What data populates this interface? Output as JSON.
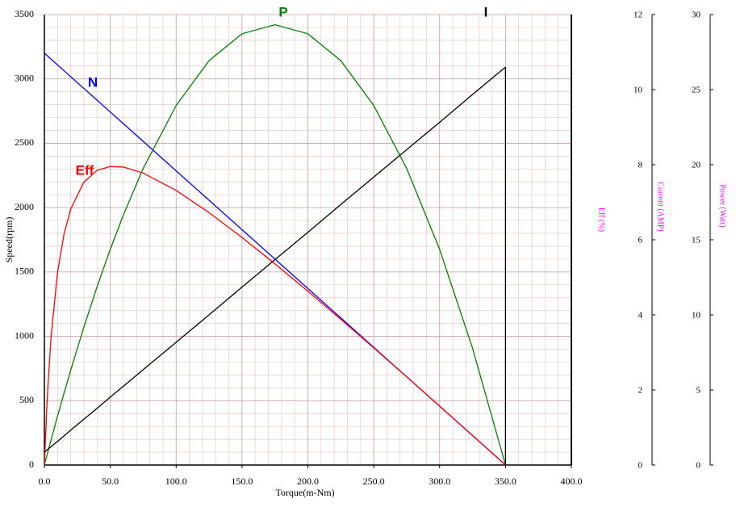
{
  "chart_data": {
    "type": "line",
    "x_label": "Torque(m-Nm)",
    "y_label": "Speed(rpm)",
    "eff_axis_label": "Eff  (%)",
    "y2_label": "Current (AMP)",
    "y3_label": "Power (Watt)",
    "x": [
      0,
      2,
      5,
      10,
      15,
      20,
      30,
      40,
      50,
      60,
      75,
      100,
      125,
      150,
      175,
      200,
      225,
      250,
      275,
      300,
      325,
      350
    ],
    "xlim": [
      0,
      400
    ],
    "xticks": [
      {
        "value": 0,
        "label": "0.0"
      },
      {
        "value": 50,
        "label": "50.0"
      },
      {
        "value": 100,
        "label": "100.0"
      },
      {
        "value": 150,
        "label": "150.0"
      },
      {
        "value": 200,
        "label": "200.0"
      },
      {
        "value": 250,
        "label": "250.0"
      },
      {
        "value": 300,
        "label": "300.0"
      },
      {
        "value": 350,
        "label": "350.0"
      },
      {
        "value": 400,
        "label": "400.0"
      }
    ],
    "ylim": [
      0,
      3500
    ],
    "yticks": [
      0,
      500,
      1000,
      1500,
      2000,
      2500,
      3000,
      3500
    ],
    "y2lim": [
      0,
      12
    ],
    "y2ticks": [
      0,
      2,
      4,
      6,
      8,
      10,
      12
    ],
    "y3lim": [
      0,
      30
    ],
    "y3ticks": [
      0,
      5,
      10,
      15,
      20,
      25,
      30
    ],
    "grid": true,
    "series": [
      {
        "name": "N",
        "color": "#0000ff",
        "axis": "y",
        "values": [
          3200,
          3181.7,
          3154.3,
          3108.6,
          3062.9,
          3017.1,
          2925.7,
          2834.3,
          2742.9,
          2651.4,
          2514.3,
          2285.7,
          2057.1,
          1828.6,
          1600,
          1371.4,
          1142.9,
          914.3,
          685.7,
          457.1,
          228.6,
          0
        ]
      },
      {
        "name": "Eff",
        "color": "#ff0000",
        "axis": "y",
        "values": [
          0,
          487,
          990,
          1499,
          1799,
          1989,
          2198,
          2290,
          2319,
          2315,
          2268,
          2134,
          1961,
          1768,
          1563,
          1350,
          1132,
          910,
          685,
          458,
          230,
          0
        ]
      },
      {
        "name": "P",
        "color": "#008000",
        "axis": "y3",
        "values": [
          0,
          0.67,
          1.65,
          3.26,
          4.81,
          6.32,
          9.19,
          11.87,
          14.36,
          16.66,
          19.75,
          23.94,
          26.93,
          28.72,
          29.32,
          28.72,
          26.93,
          23.94,
          19.75,
          14.36,
          7.78,
          0
        ]
      },
      {
        "name": "I",
        "color": "#000000",
        "axis": "y2",
        "values": [
          0.34,
          0.4,
          0.49,
          0.63,
          0.78,
          0.93,
          1.22,
          1.51,
          1.81,
          2.1,
          2.54,
          3.27,
          4.0,
          4.74,
          5.47,
          6.2,
          6.94,
          7.67,
          8.4,
          9.13,
          9.87,
          10.6
        ]
      }
    ]
  }
}
